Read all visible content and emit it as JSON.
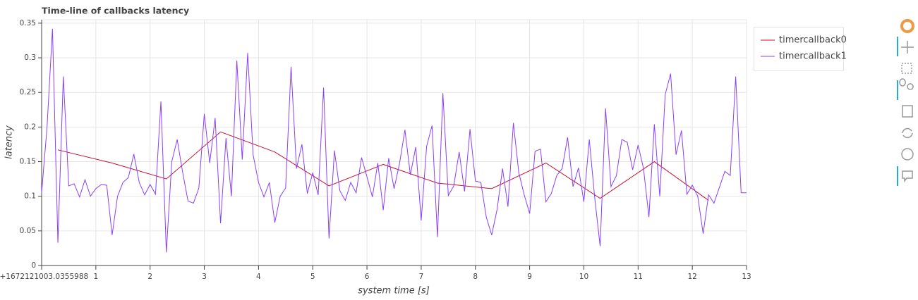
{
  "chart_data": {
    "type": "line",
    "title": "Time-line of callbacks latency",
    "x_label": "system time [s]",
    "y_label": "latency",
    "xlim": [
      0,
      13
    ],
    "ylim": [
      0,
      0.355
    ],
    "xticks": [
      {
        "value": 0,
        "label": "0+1672121003.0355988"
      },
      1,
      2,
      3,
      4,
      5,
      6,
      7,
      8,
      9,
      10,
      11,
      12,
      13
    ],
    "yticks": [
      0,
      0.05,
      0.1,
      0.15,
      0.2,
      0.25,
      0.3,
      0.35
    ],
    "grid": true,
    "legend": "outside-right",
    "series": [
      {
        "name": "timercallback0",
        "color": "#c8102e",
        "x": [
          0.3,
          1.3,
          2.3,
          3.3,
          4.3,
          5.3,
          6.3,
          7.3,
          8.3,
          9.3,
          10.3,
          11.3,
          12.3
        ],
        "values": [
          0.167,
          0.148,
          0.125,
          0.193,
          0.164,
          0.115,
          0.146,
          0.119,
          0.111,
          0.148,
          0.097,
          0.15,
          0.094
        ]
      },
      {
        "name": "timercallback1",
        "color": "#8a3ffc",
        "x": [
          0,
          0.1,
          0.2,
          0.3,
          0.4,
          0.5,
          0.6,
          0.7,
          0.8,
          0.9,
          1,
          1.1,
          1.2,
          1.3,
          1.4,
          1.5,
          1.6,
          1.7,
          1.8,
          1.9,
          2,
          2.1,
          2.2,
          2.3,
          2.4,
          2.5,
          2.6,
          2.7,
          2.8,
          2.9,
          3,
          3.1,
          3.2,
          3.3,
          3.4,
          3.5,
          3.6,
          3.7,
          3.8,
          3.9,
          4,
          4.1,
          4.2,
          4.3,
          4.4,
          4.5,
          4.6,
          4.7,
          4.8,
          4.9,
          5,
          5.1,
          5.2,
          5.3,
          5.4,
          5.5,
          5.6,
          5.7,
          5.8,
          5.9,
          6,
          6.1,
          6.2,
          6.3,
          6.4,
          6.5,
          6.6,
          6.7,
          6.8,
          6.9,
          7,
          7.1,
          7.2,
          7.3,
          7.4,
          7.5,
          7.6,
          7.7,
          7.8,
          7.9,
          8,
          8.1,
          8.2,
          8.3,
          8.4,
          8.5,
          8.6,
          8.7,
          8.8,
          8.9,
          9,
          9.1,
          9.2,
          9.3,
          9.4,
          9.5,
          9.6,
          9.7,
          9.8,
          9.9,
          10,
          10.1,
          10.2,
          10.3,
          10.4,
          10.5,
          10.6,
          10.7,
          10.8,
          10.9,
          11,
          11.1,
          11.2,
          11.3,
          11.4,
          11.5,
          11.6,
          11.7,
          11.8,
          11.9,
          12,
          12.1,
          12.2,
          12.3,
          12.4,
          12.5,
          12.6,
          12.7,
          12.8,
          12.9,
          13
        ],
        "values": [
          0.105,
          0.2,
          0.342,
          0.033,
          0.273,
          0.115,
          0.118,
          0.099,
          0.124,
          0.1,
          0.111,
          0.117,
          0.116,
          0.044,
          0.1,
          0.12,
          0.127,
          0.161,
          0.12,
          0.102,
          0.117,
          0.103,
          0.237,
          0.019,
          0.15,
          0.182,
          0.135,
          0.093,
          0.09,
          0.112,
          0.219,
          0.148,
          0.213,
          0.061,
          0.184,
          0.1,
          0.296,
          0.153,
          0.307,
          0.16,
          0.12,
          0.099,
          0.12,
          0.062,
          0.1,
          0.112,
          0.287,
          0.14,
          0.175,
          0.104,
          0.134,
          0.102,
          0.257,
          0.039,
          0.166,
          0.108,
          0.094,
          0.12,
          0.105,
          0.156,
          0.128,
          0.099,
          0.148,
          0.08,
          0.155,
          0.111,
          0.147,
          0.196,
          0.131,
          0.171,
          0.065,
          0.172,
          0.202,
          0.041,
          0.249,
          0.101,
          0.115,
          0.164,
          0.107,
          0.197,
          0.122,
          0.12,
          0.07,
          0.044,
          0.081,
          0.14,
          0.085,
          0.206,
          0.134,
          0.102,
          0.075,
          0.165,
          0.168,
          0.092,
          0.104,
          0.13,
          0.14,
          0.185,
          0.114,
          0.141,
          0.092,
          0.182,
          0.098,
          0.028,
          0.227,
          0.114,
          0.13,
          0.182,
          0.178,
          0.138,
          0.174,
          0.14,
          0.07,
          0.204,
          0.1,
          0.247,
          0.277,
          0.16,
          0.195,
          0.103,
          0.116,
          0.1,
          0.046,
          0.102,
          0.09,
          0.113,
          0.136,
          0.13,
          0.273,
          0.105,
          0.105
        ]
      }
    ]
  }
}
